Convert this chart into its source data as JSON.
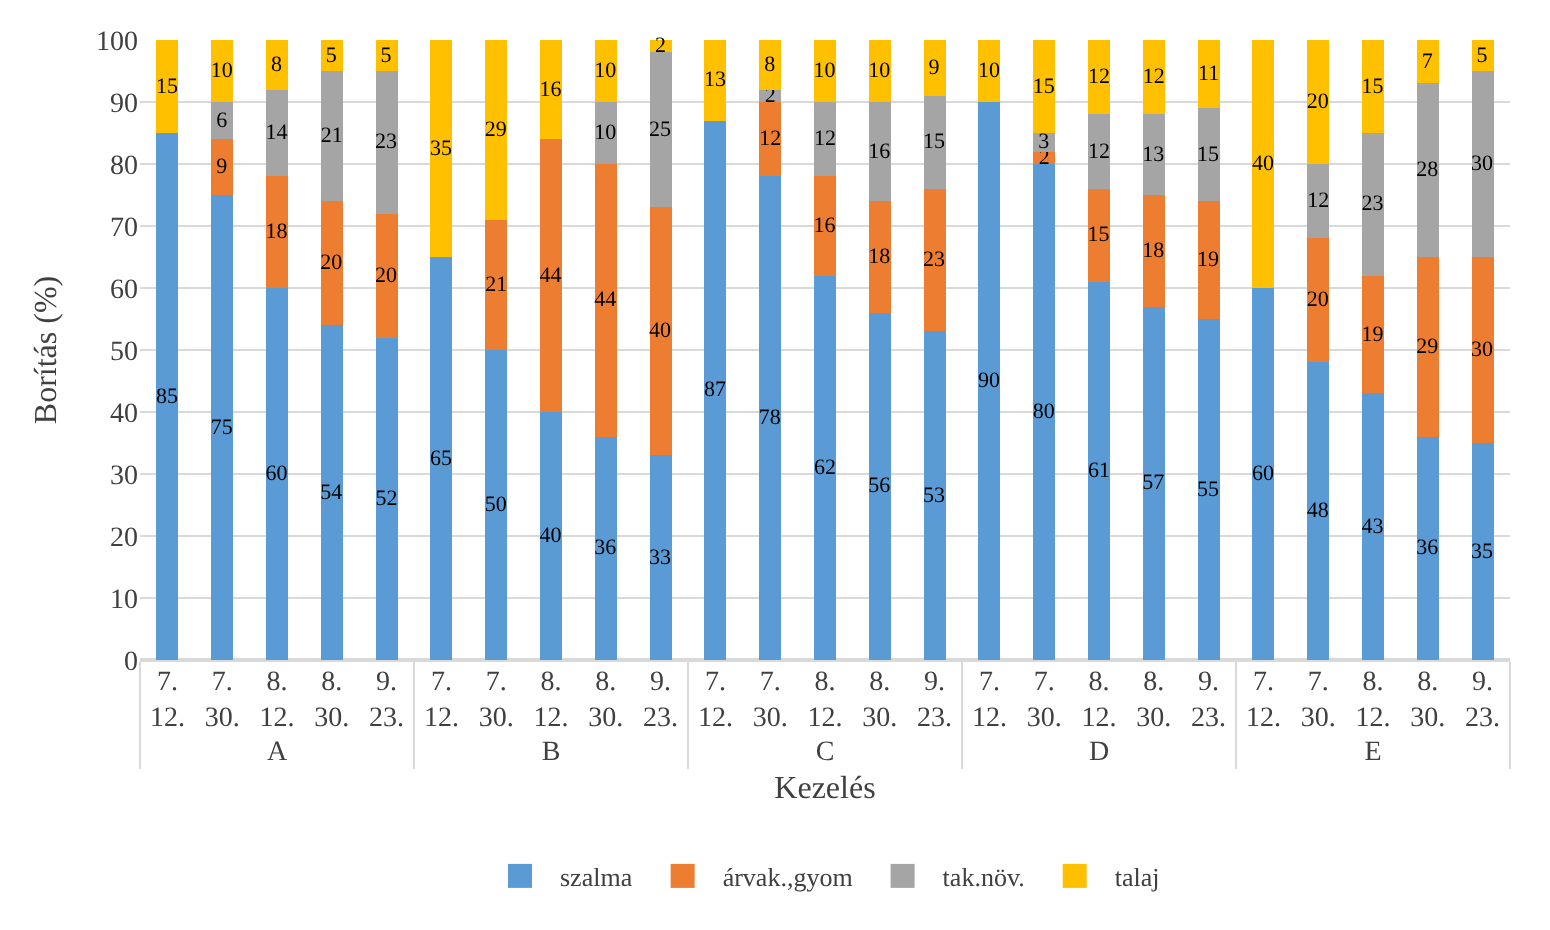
{
  "chart_data": {
    "type": "bar",
    "stacked": true,
    "xlabel": "Kezelés",
    "ylabel": "Borítás (%)",
    "categories": [
      "7. 12.",
      "7. 30.",
      "8. 12.",
      "8. 30.",
      "9. 23.",
      "7. 12.",
      "7. 30.",
      "8. 12.",
      "8. 30.",
      "9. 23.",
      "7. 12.",
      "7. 30.",
      "8. 12.",
      "8. 30.",
      "9. 23.",
      "7. 12.",
      "7. 30.",
      "8. 12.",
      "8. 30.",
      "9. 23.",
      "7. 12.",
      "7. 30.",
      "8. 12.",
      "8. 30.",
      "9. 23."
    ],
    "annotations": [
      "A",
      "B",
      "C",
      "D",
      "E"
    ],
    "series": [
      {
        "name": "szalma",
        "color": "#5b9bd5",
        "values": [
          85,
          75,
          60,
          54,
          52,
          65,
          50,
          40,
          36,
          33,
          87,
          78,
          62,
          56,
          53,
          90,
          80,
          61,
          57,
          55,
          60,
          48,
          43,
          36,
          35
        ]
      },
      {
        "name": "árvak.,gyom",
        "color": "#ed7d31",
        "values": [
          null,
          9,
          18,
          20,
          20,
          null,
          21,
          44,
          44,
          40,
          null,
          12,
          16,
          18,
          23,
          null,
          2,
          15,
          18,
          19,
          null,
          20,
          19,
          29,
          30
        ]
      },
      {
        "name": "tak.növ.",
        "color": "#a5a5a5",
        "values": [
          null,
          6,
          14,
          21,
          23,
          null,
          null,
          null,
          10,
          25,
          null,
          2,
          12,
          16,
          15,
          null,
          3,
          12,
          13,
          15,
          null,
          12,
          23,
          28,
          30
        ]
      },
      {
        "name": "talaj",
        "color": "#ffc000",
        "values": [
          15,
          10,
          8,
          5,
          5,
          35,
          29,
          16,
          10,
          2,
          13,
          8,
          10,
          10,
          9,
          10,
          15,
          12,
          12,
          11,
          40,
          20,
          15,
          7,
          5
        ]
      }
    ],
    "ylim": [
      0,
      100
    ],
    "yticks": [
      0,
      10,
      20,
      30,
      40,
      50,
      60,
      70,
      80,
      90,
      100
    ],
    "grid": "y",
    "legend": "bottom",
    "data_labels": true
  }
}
